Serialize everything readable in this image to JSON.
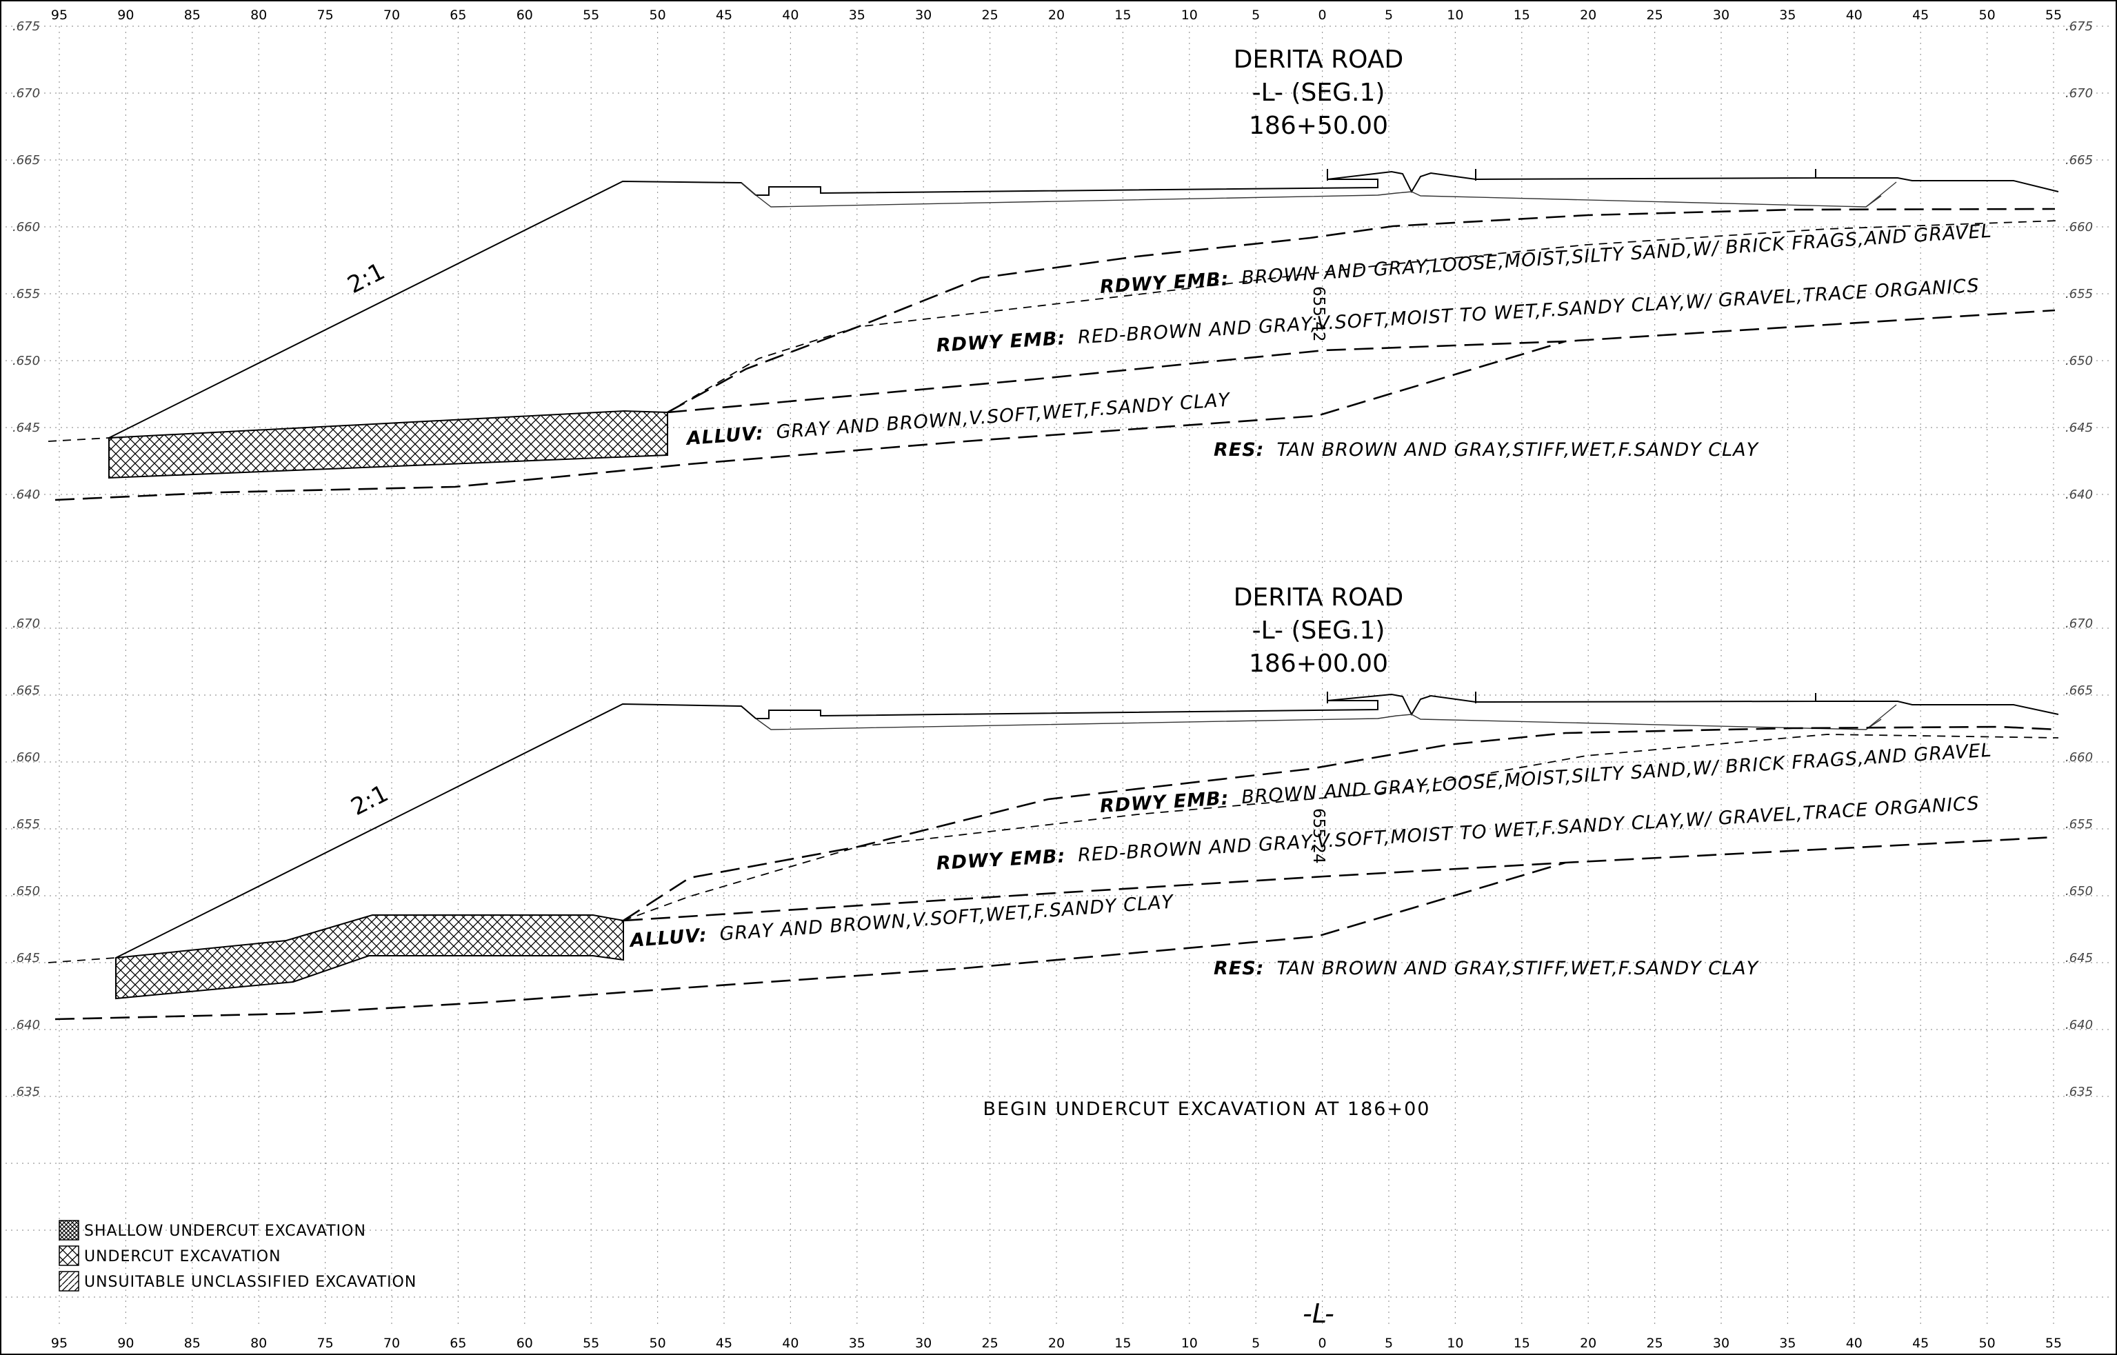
{
  "stations": {
    "left": [
      "95",
      "90",
      "85",
      "80",
      "75",
      "70",
      "65",
      "60",
      "55",
      "50",
      "45",
      "40",
      "35",
      "30",
      "25",
      "20",
      "15",
      "10",
      "5"
    ],
    "center": "0",
    "right": [
      "5",
      "10",
      "15",
      "20",
      "25",
      "30",
      "35",
      "40",
      "45",
      "50",
      "55"
    ]
  },
  "sections": [
    {
      "road": "DERITA ROAD",
      "alignment": "-L- (SEG.1)",
      "station": "186+50.00",
      "elevations": [
        ".675",
        ".670",
        ".665",
        ".660",
        ".655",
        ".650",
        ".645",
        ".640"
      ],
      "slope_label": "2:1",
      "vertical_label": "655.42",
      "layers": [
        {
          "abbr": "RDWY EMB:",
          "desc": "BROWN AND GRAY,LOOSE,MOIST,SILTY SAND,W/ BRICK FRAGS,AND GRAVEL"
        },
        {
          "abbr": "RDWY EMB:",
          "desc": "RED-BROWN AND GRAY,V.SOFT,MOIST TO WET,F.SANDY CLAY,W/ GRAVEL,TRACE ORGANICS"
        },
        {
          "abbr": "ALLUV:",
          "desc": "GRAY AND BROWN,V.SOFT,WET,F.SANDY CLAY"
        },
        {
          "abbr": "RES:",
          "desc": "TAN BROWN AND GRAY,STIFF,WET,F.SANDY CLAY"
        }
      ]
    },
    {
      "road": "DERITA ROAD",
      "alignment": "-L- (SEG.1)",
      "station": "186+00.00",
      "elevations": [
        ".670",
        ".665",
        ".660",
        ".655",
        ".650",
        ".645",
        ".640",
        ".635"
      ],
      "slope_label": "2:1",
      "vertical_label": "655.24",
      "layers": [
        {
          "abbr": "RDWY EMB:",
          "desc": "BROWN AND GRAY,LOOSE,MOIST,SILTY SAND,W/ BRICK FRAGS,AND GRAVEL"
        },
        {
          "abbr": "RDWY EMB:",
          "desc": "RED-BROWN AND GRAY,V.SOFT,MOIST TO WET,F.SANDY CLAY,W/ GRAVEL,TRACE ORGANICS"
        },
        {
          "abbr": "ALLUV:",
          "desc": "GRAY AND BROWN,V.SOFT,WET,F.SANDY CLAY"
        },
        {
          "abbr": "RES:",
          "desc": "TAN BROWN AND GRAY,STIFF,WET,F.SANDY CLAY"
        }
      ]
    }
  ],
  "note": "BEGIN UNDERCUT EXCAVATION AT 186+00",
  "legend": [
    {
      "label": "SHALLOW UNDERCUT EXCAVATION",
      "pattern": "dense-crosshatch"
    },
    {
      "label": "UNDERCUT EXCAVATION",
      "pattern": "crosshatch"
    },
    {
      "label": "UNSUITABLE UNCLASSIFIED EXCAVATION",
      "pattern": "diagonal-hatch"
    }
  ],
  "centerline_mark": "-L-"
}
